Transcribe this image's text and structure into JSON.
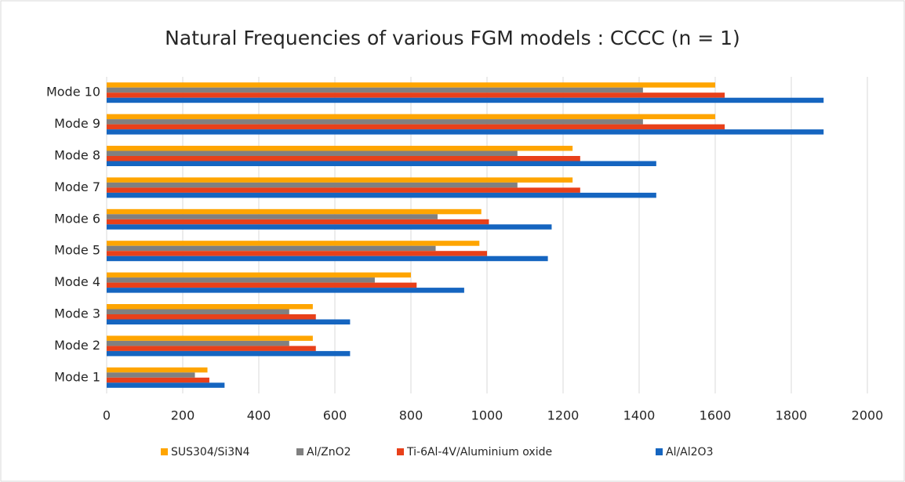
{
  "chart_data": {
    "type": "barh",
    "title": "Natural Frequencies of various FGM models : CCCC (n = 1)",
    "categories": [
      "Mode 1",
      "Mode 2",
      "Mode 3",
      "Mode 4",
      "Mode 5",
      "Mode 6",
      "Mode 7",
      "Mode 8",
      "Mode 9",
      "Mode 10"
    ],
    "series": [
      {
        "name": "SUS304/Si3N4",
        "color": "#ffa500",
        "values": [
          265,
          542,
          542,
          800,
          980,
          985,
          1225,
          1225,
          1600,
          1600
        ]
      },
      {
        "name": "Al/ZnO2",
        "color": "#808080",
        "values": [
          232,
          480,
          480,
          705,
          865,
          870,
          1080,
          1080,
          1410,
          1410
        ]
      },
      {
        "name": "Ti-6Al-4V/Aluminium oxide",
        "color": "#e8401a",
        "values": [
          270,
          550,
          550,
          815,
          1000,
          1005,
          1245,
          1245,
          1625,
          1625
        ]
      },
      {
        "name": "Al/Al2O3",
        "color": "#1565c0",
        "values": [
          310,
          640,
          640,
          940,
          1160,
          1170,
          1445,
          1445,
          1885,
          1885
        ]
      }
    ],
    "xlim": [
      0,
      2000
    ],
    "xticks": [
      0,
      200,
      400,
      600,
      800,
      1000,
      1200,
      1400,
      1600,
      1800,
      2000
    ],
    "grid": true,
    "legend": "bottom"
  }
}
